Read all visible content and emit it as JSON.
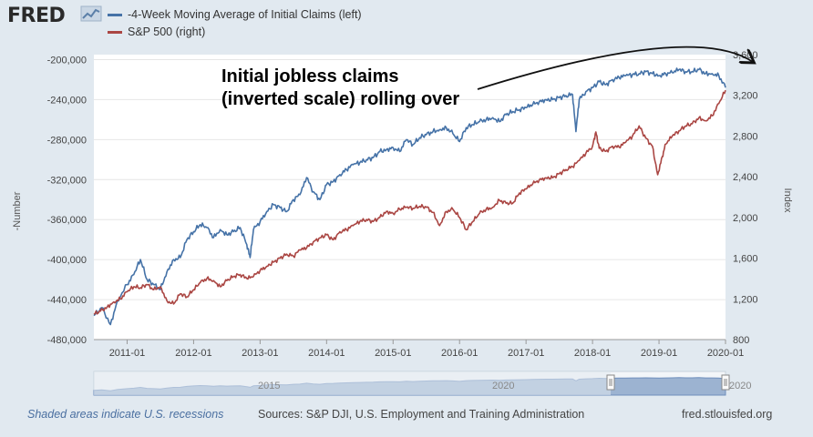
{
  "header": {
    "logo_text": "FRED",
    "logo_icon": "chart-line-icon"
  },
  "colors": {
    "claims": "#4572a7",
    "sp500": "#aa4643",
    "plot_bg": "#ffffff",
    "page_bg": "#e1e9f0",
    "grid": "#e6e6e6",
    "navigator_fill": "#9cb3d1",
    "navigator_line": "#6f8fbd"
  },
  "chart_data": {
    "type": "line",
    "annotation": {
      "lines": [
        "Initial jobless claims",
        "(inverted scale) rolling over"
      ]
    },
    "x_axis": {
      "range": [
        2010.5,
        2020.0
      ],
      "tick_values": [
        2011,
        2012,
        2013,
        2014,
        2015,
        2016,
        2017,
        2018,
        2019,
        2020
      ],
      "tick_labels": [
        "2011-01",
        "2012-01",
        "2013-01",
        "2014-01",
        "2015-01",
        "2016-01",
        "2017-01",
        "2018-01",
        "2019-01",
        "2020-01"
      ]
    },
    "y_left": {
      "label": "-Number",
      "range": [
        -480000,
        -195000
      ],
      "tick_values": [
        -200000,
        -240000,
        -280000,
        -320000,
        -360000,
        -400000,
        -440000,
        -480000
      ],
      "tick_labels": [
        "-200,000",
        "-240,000",
        "-280,000",
        "-320,000",
        "-360,000",
        "-400,000",
        "-440,000",
        "-480,000"
      ]
    },
    "y_right": {
      "label": "Index",
      "range": [
        800,
        3600
      ],
      "tick_values": [
        3600,
        3200,
        2800,
        2400,
        2000,
        1600,
        1200,
        800
      ],
      "tick_labels": [
        "3,600",
        "3,200",
        "2,800",
        "2,400",
        "2,000",
        "1,600",
        "1,200",
        "800"
      ]
    },
    "series": [
      {
        "name": "-4-Week Moving Average of Initial Claims (left)",
        "axis": "left",
        "x": [
          2010.5,
          2010.62,
          2010.75,
          2010.85,
          2011.0,
          2011.1,
          2011.2,
          2011.3,
          2011.4,
          2011.5,
          2011.6,
          2011.7,
          2011.8,
          2011.9,
          2012.0,
          2012.1,
          2012.2,
          2012.3,
          2012.4,
          2012.5,
          2012.6,
          2012.7,
          2012.8,
          2012.85,
          2012.9,
          2013.0,
          2013.1,
          2013.2,
          2013.3,
          2013.4,
          2013.5,
          2013.6,
          2013.7,
          2013.8,
          2013.9,
          2014.0,
          2014.1,
          2014.2,
          2014.3,
          2014.4,
          2014.5,
          2014.6,
          2014.7,
          2014.8,
          2014.9,
          2015.0,
          2015.1,
          2015.2,
          2015.3,
          2015.4,
          2015.5,
          2015.6,
          2015.7,
          2015.8,
          2015.9,
          2016.0,
          2016.1,
          2016.2,
          2016.3,
          2016.4,
          2016.5,
          2016.6,
          2016.7,
          2016.8,
          2016.9,
          2017.0,
          2017.1,
          2017.2,
          2017.3,
          2017.4,
          2017.5,
          2017.6,
          2017.7,
          2017.75,
          2017.8,
          2017.9,
          2018.0,
          2018.1,
          2018.2,
          2018.3,
          2018.4,
          2018.5,
          2018.6,
          2018.7,
          2018.8,
          2018.9,
          2019.0,
          2019.1,
          2019.2,
          2019.3,
          2019.4,
          2019.5,
          2019.6,
          2019.7,
          2019.8,
          2019.9,
          2020.0
        ],
        "values": [
          -456000,
          -448000,
          -465000,
          -442000,
          -425000,
          -415000,
          -400000,
          -420000,
          -425000,
          -430000,
          -412000,
          -400000,
          -398000,
          -380000,
          -372000,
          -365000,
          -368000,
          -378000,
          -370000,
          -375000,
          -372000,
          -368000,
          -385000,
          -398000,
          -370000,
          -362000,
          -352000,
          -345000,
          -348000,
          -352000,
          -340000,
          -335000,
          -318000,
          -332000,
          -340000,
          -325000,
          -322000,
          -315000,
          -310000,
          -305000,
          -303000,
          -300000,
          -298000,
          -292000,
          -290000,
          -288000,
          -292000,
          -280000,
          -285000,
          -278000,
          -275000,
          -272000,
          -270000,
          -268000,
          -274000,
          -282000,
          -268000,
          -265000,
          -262000,
          -260000,
          -258000,
          -262000,
          -255000,
          -252000,
          -250000,
          -248000,
          -245000,
          -242000,
          -240000,
          -240000,
          -238000,
          -236000,
          -235000,
          -272000,
          -240000,
          -232000,
          -228000,
          -222000,
          -225000,
          -220000,
          -218000,
          -216000,
          -215000,
          -214000,
          -212000,
          -214000,
          -216000,
          -214000,
          -213000,
          -210000,
          -212000,
          -212000,
          -210000,
          -214000,
          -214000,
          -216000,
          -228000
        ]
      },
      {
        "name": "S&P 500 (right)",
        "axis": "right",
        "x": [
          2010.5,
          2010.6,
          2010.7,
          2010.8,
          2010.9,
          2011.0,
          2011.1,
          2011.2,
          2011.3,
          2011.4,
          2011.5,
          2011.6,
          2011.7,
          2011.8,
          2011.9,
          2012.0,
          2012.1,
          2012.2,
          2012.3,
          2012.4,
          2012.5,
          2012.6,
          2012.7,
          2012.8,
          2012.9,
          2013.0,
          2013.1,
          2013.2,
          2013.3,
          2013.4,
          2013.5,
          2013.6,
          2013.7,
          2013.8,
          2013.9,
          2014.0,
          2014.1,
          2014.2,
          2014.3,
          2014.4,
          2014.5,
          2014.6,
          2014.7,
          2014.8,
          2014.9,
          2015.0,
          2015.1,
          2015.2,
          2015.3,
          2015.4,
          2015.5,
          2015.6,
          2015.7,
          2015.8,
          2015.9,
          2016.0,
          2016.1,
          2016.2,
          2016.3,
          2016.4,
          2016.5,
          2016.6,
          2016.7,
          2016.8,
          2016.9,
          2017.0,
          2017.1,
          2017.2,
          2017.3,
          2017.4,
          2017.5,
          2017.6,
          2017.7,
          2017.8,
          2017.9,
          2018.0,
          2018.05,
          2018.1,
          2018.2,
          2018.3,
          2018.4,
          2018.5,
          2018.6,
          2018.7,
          2018.8,
          2018.9,
          2018.98,
          2019.05,
          2019.1,
          2019.2,
          2019.3,
          2019.4,
          2019.5,
          2019.6,
          2019.7,
          2019.8,
          2019.9,
          2020.0
        ],
        "values": [
          1050,
          1080,
          1120,
          1170,
          1200,
          1270,
          1320,
          1310,
          1340,
          1290,
          1320,
          1180,
          1150,
          1250,
          1220,
          1290,
          1360,
          1400,
          1380,
          1320,
          1380,
          1420,
          1440,
          1400,
          1420,
          1480,
          1520,
          1560,
          1600,
          1640,
          1620,
          1680,
          1700,
          1760,
          1800,
          1830,
          1780,
          1860,
          1880,
          1920,
          1960,
          1980,
          1960,
          2000,
          2060,
          2040,
          2080,
          2100,
          2090,
          2110,
          2100,
          2050,
          1920,
          2060,
          2080,
          2000,
          1880,
          1960,
          2040,
          2080,
          2100,
          2170,
          2140,
          2140,
          2240,
          2280,
          2330,
          2370,
          2390,
          2390,
          2430,
          2470,
          2500,
          2560,
          2630,
          2700,
          2840,
          2680,
          2650,
          2700,
          2690,
          2740,
          2800,
          2900,
          2780,
          2700,
          2420,
          2600,
          2720,
          2800,
          2850,
          2900,
          2920,
          2980,
          2950,
          3000,
          3120,
          3250
        ]
      }
    ],
    "navigator": {
      "labels": [
        "2015",
        "2020",
        "2020"
      ]
    }
  },
  "footer": {
    "note": "Shaded areas indicate U.S. recessions",
    "source": "Sources: S&P DJI, U.S. Employment and Training Administration",
    "site": "fred.stlouisfed.org"
  }
}
